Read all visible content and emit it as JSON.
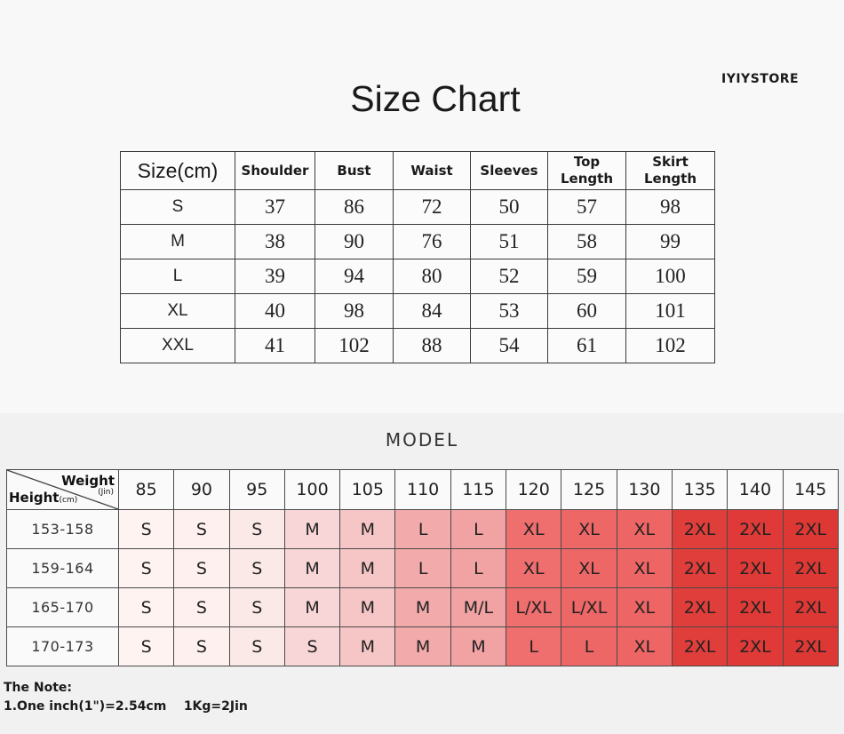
{
  "brand": "IYIYSTORE",
  "title": "Size Chart",
  "size_table": {
    "headers": [
      [
        "Size(cm)"
      ],
      [
        "Shoulder"
      ],
      [
        "Bust"
      ],
      [
        "Waist"
      ],
      [
        "Sleeves"
      ],
      [
        "Top",
        "Length"
      ],
      [
        "Skirt",
        "Length"
      ]
    ],
    "rows": [
      [
        "S",
        "37",
        "86",
        "72",
        "50",
        "57",
        "98"
      ],
      [
        "M",
        "38",
        "90",
        "76",
        "51",
        "58",
        "99"
      ],
      [
        "L",
        "39",
        "94",
        "80",
        "52",
        "59",
        "100"
      ],
      [
        "XL",
        "40",
        "98",
        "84",
        "53",
        "60",
        "101"
      ],
      [
        "XXL",
        "41",
        "102",
        "88",
        "54",
        "61",
        "102"
      ]
    ]
  },
  "model": {
    "heading": "MODEL",
    "corner": {
      "weight": "Weight",
      "jin": "(Jin)",
      "height": "Height",
      "cm": "(cm)"
    },
    "weights": [
      "85",
      "90",
      "95",
      "100",
      "105",
      "110",
      "115",
      "120",
      "125",
      "130",
      "135",
      "140",
      "145"
    ],
    "rows": [
      {
        "height": "153-158",
        "sizes": [
          "S",
          "S",
          "S",
          "M",
          "M",
          "L",
          "L",
          "XL",
          "XL",
          "XL",
          "2XL",
          "2XL",
          "2XL"
        ]
      },
      {
        "height": "159-164",
        "sizes": [
          "S",
          "S",
          "S",
          "M",
          "M",
          "L",
          "L",
          "XL",
          "XL",
          "XL",
          "2XL",
          "2XL",
          "2XL"
        ]
      },
      {
        "height": "165-170",
        "sizes": [
          "S",
          "S",
          "S",
          "M",
          "M",
          "M",
          "M/L",
          "L/XL",
          "L/XL",
          "XL",
          "2XL",
          "2XL",
          "2XL"
        ]
      },
      {
        "height": "170-173",
        "sizes": [
          "S",
          "S",
          "S",
          "S",
          "M",
          "M",
          "M",
          "L",
          "L",
          "XL",
          "2XL",
          "2XL",
          "2XL"
        ]
      }
    ],
    "column_colors": [
      "#fef3f1",
      "#fdf0ee",
      "#fbe9e7",
      "#f8d5d6",
      "#f6c5c6",
      "#f3aaaa",
      "#f1a2a2",
      "#ef6e6e",
      "#ee6767",
      "#ed6565",
      "#e03e3a",
      "#df3a37",
      "#de3834"
    ]
  },
  "note": {
    "heading": "The Note:",
    "line1": "1.One inch(1\")=2.54cm    1Kg=2Jin"
  }
}
